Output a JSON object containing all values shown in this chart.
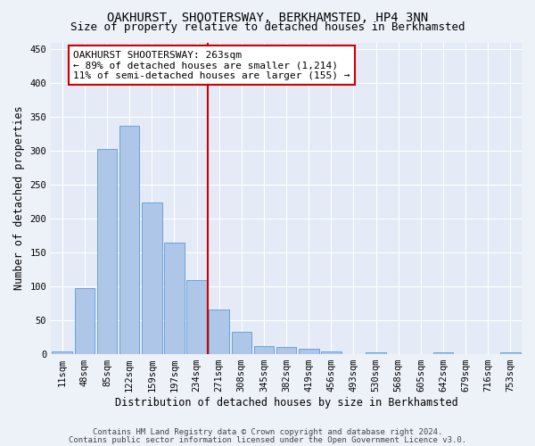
{
  "title": "OAKHURST, SHOOTERSWAY, BERKHAMSTED, HP4 3NN",
  "subtitle": "Size of property relative to detached houses in Berkhamsted",
  "xlabel": "Distribution of detached houses by size in Berkhamsted",
  "ylabel": "Number of detached properties",
  "footer_line1": "Contains HM Land Registry data © Crown copyright and database right 2024.",
  "footer_line2": "Contains public sector information licensed under the Open Government Licence v3.0.",
  "bin_labels": [
    "11sqm",
    "48sqm",
    "85sqm",
    "122sqm",
    "159sqm",
    "197sqm",
    "234sqm",
    "271sqm",
    "308sqm",
    "345sqm",
    "382sqm",
    "419sqm",
    "456sqm",
    "493sqm",
    "530sqm",
    "568sqm",
    "605sqm",
    "642sqm",
    "679sqm",
    "716sqm",
    "753sqm"
  ],
  "bar_values": [
    3,
    97,
    303,
    337,
    224,
    164,
    109,
    65,
    33,
    11,
    10,
    7,
    3,
    0,
    2,
    0,
    0,
    2,
    0,
    0,
    2
  ],
  "bar_color": "#aec6e8",
  "bar_edge_color": "#5b9bd5",
  "vline_color": "#cc0000",
  "vline_x": 6.5,
  "annotation_line1": "OAKHURST SHOOTERSWAY: 263sqm",
  "annotation_line2": "← 89% of detached houses are smaller (1,214)",
  "annotation_line3": "11% of semi-detached houses are larger (155) →",
  "annotation_box_color": "#cc0000",
  "ylim": [
    0,
    460
  ],
  "yticks": [
    0,
    50,
    100,
    150,
    200,
    250,
    300,
    350,
    400,
    450
  ],
  "background_color": "#edf2f9",
  "plot_background_color": "#e4eaf6",
  "grid_color": "#ffffff",
  "title_fontsize": 10,
  "subtitle_fontsize": 9,
  "axis_label_fontsize": 8.5,
  "tick_fontsize": 7.5,
  "annotation_fontsize": 8,
  "footer_fontsize": 6.5
}
